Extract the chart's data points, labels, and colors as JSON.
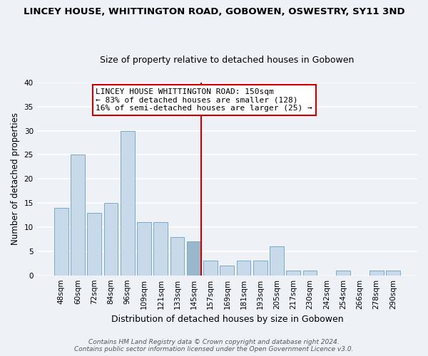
{
  "title": "LINCEY HOUSE, WHITTINGTON ROAD, GOBOWEN, OSWESTRY, SY11 3ND",
  "subtitle": "Size of property relative to detached houses in Gobowen",
  "xlabel": "Distribution of detached houses by size in Gobowen",
  "ylabel": "Number of detached properties",
  "bar_labels": [
    "48sqm",
    "60sqm",
    "72sqm",
    "84sqm",
    "96sqm",
    "109sqm",
    "121sqm",
    "133sqm",
    "145sqm",
    "157sqm",
    "169sqm",
    "181sqm",
    "193sqm",
    "205sqm",
    "217sqm",
    "230sqm",
    "242sqm",
    "254sqm",
    "266sqm",
    "278sqm",
    "290sqm"
  ],
  "bar_heights": [
    14,
    25,
    13,
    15,
    30,
    11,
    11,
    8,
    7,
    3,
    2,
    3,
    3,
    6,
    1,
    1,
    0,
    1,
    0,
    1,
    1
  ],
  "bar_color": "#c8daea",
  "bar_edgecolor": "#7aaac8",
  "highlight_bar_index": 8,
  "highlight_color": "#9ab8cc",
  "highlight_edgecolor": "#7aaac8",
  "vline_color": "#cc0000",
  "ylim": [
    0,
    40
  ],
  "yticks": [
    0,
    5,
    10,
    15,
    20,
    25,
    30,
    35,
    40
  ],
  "annotation_title": "LINCEY HOUSE WHITTINGTON ROAD: 150sqm",
  "annotation_line1": "← 83% of detached houses are smaller (128)",
  "annotation_line2": "16% of semi-detached houses are larger (25) →",
  "footer_line1": "Contains HM Land Registry data © Crown copyright and database right 2024.",
  "footer_line2": "Contains public sector information licensed under the Open Government Licence v3.0.",
  "bg_color": "#eef2f7",
  "grid_color": "#ffffff",
  "title_fontsize": 9.5,
  "subtitle_fontsize": 9,
  "xlabel_fontsize": 9,
  "ylabel_fontsize": 8.5,
  "tick_fontsize": 7.5,
  "annotation_fontsize": 8,
  "footer_fontsize": 6.5
}
